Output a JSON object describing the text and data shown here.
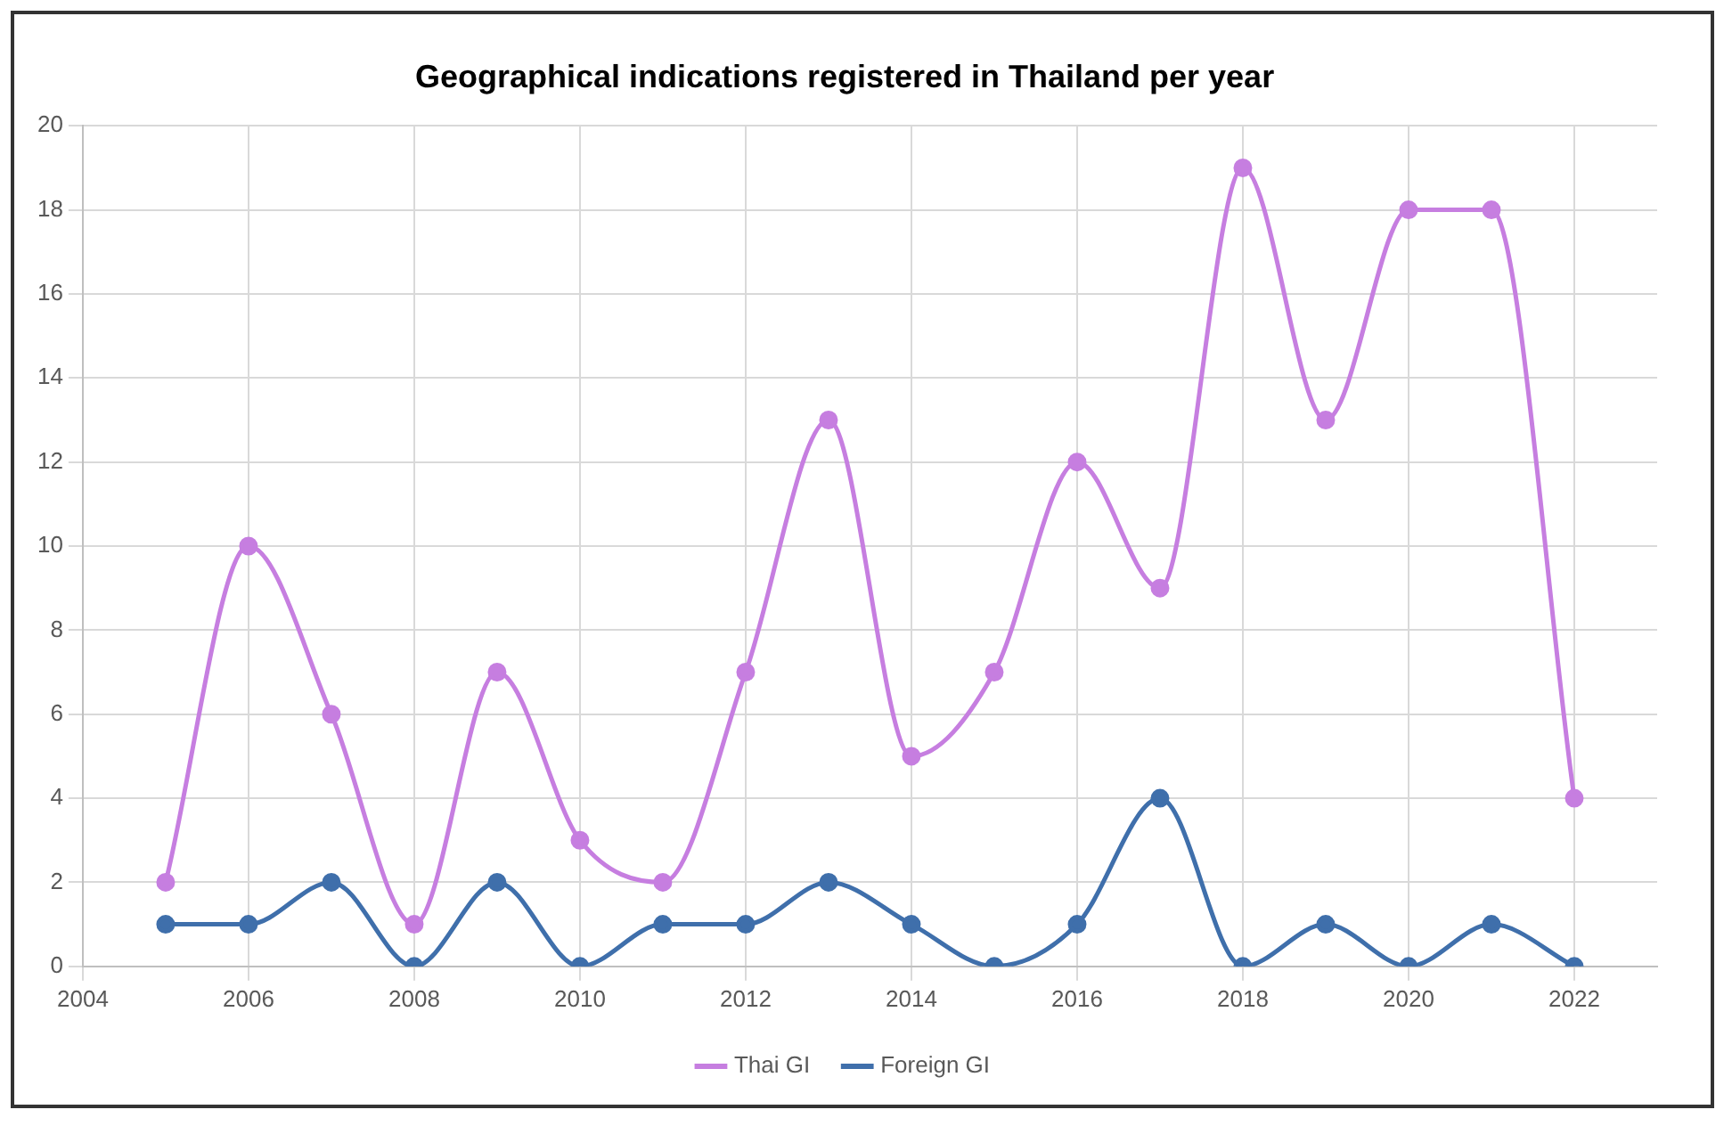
{
  "chart_data": {
    "type": "line",
    "title": "Geographical indications registered in Thailand per year",
    "x": [
      2005,
      2006,
      2007,
      2008,
      2009,
      2010,
      2011,
      2012,
      2013,
      2014,
      2015,
      2016,
      2017,
      2018,
      2019,
      2020,
      2021,
      2022
    ],
    "series": [
      {
        "name": "Thai GI",
        "color": "#c67ee0",
        "values": [
          2,
          10,
          6,
          1,
          7,
          3,
          2,
          7,
          13,
          5,
          7,
          12,
          9,
          19,
          13,
          18,
          18,
          4
        ]
      },
      {
        "name": "Foreign GI",
        "color": "#3f6fab",
        "values": [
          1,
          1,
          2,
          0,
          2,
          0,
          1,
          1,
          2,
          1,
          0,
          1,
          4,
          0,
          1,
          0,
          1,
          0
        ]
      }
    ],
    "xlim": [
      2004,
      2023
    ],
    "xticks": [
      2004,
      2006,
      2008,
      2010,
      2012,
      2014,
      2016,
      2018,
      2020,
      2022
    ],
    "ylim": [
      0,
      20
    ],
    "yticks": [
      0,
      2,
      4,
      6,
      8,
      10,
      12,
      14,
      16,
      18,
      20
    ],
    "grid": true,
    "legend": "bottom",
    "marker": "circle",
    "line_style": "solid"
  }
}
